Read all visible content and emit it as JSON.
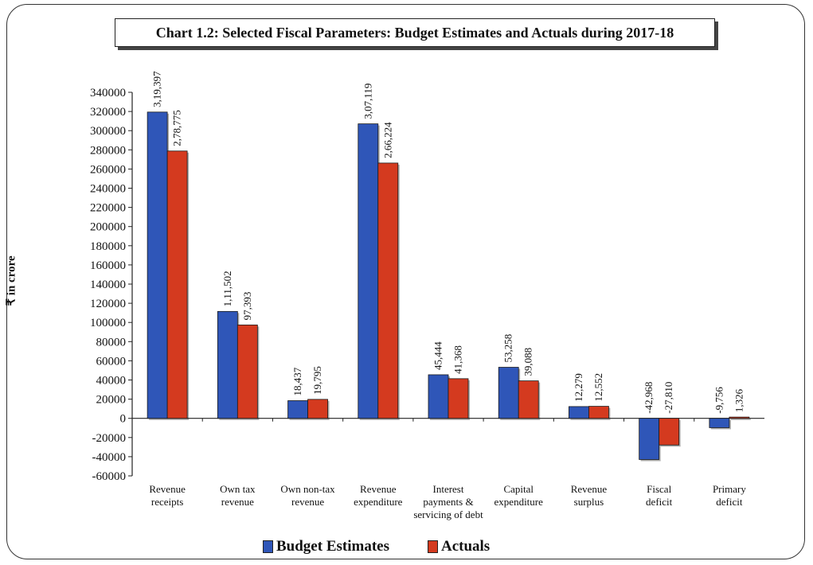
{
  "colors": {
    "budget": "#2f56b8",
    "actuals": "#d43a1f"
  },
  "chart_data": {
    "type": "bar",
    "title": "Chart 1.2: Selected Fiscal Parameters: Budget Estimates and Actuals during 2017-18",
    "ylabel": "₹ in crore",
    "xlabel": "",
    "ylim": [
      -60000,
      340000
    ],
    "yticks": [
      "-60000",
      "-40000",
      "-20000",
      "0",
      "20000",
      "40000",
      "60000",
      "80000",
      "100000",
      "120000",
      "140000",
      "160000",
      "180000",
      "200000",
      "220000",
      "240000",
      "260000",
      "280000",
      "300000",
      "320000",
      "340000"
    ],
    "categories": [
      [
        "Revenue",
        "receipts"
      ],
      [
        "Own tax",
        "revenue"
      ],
      [
        "Own non-tax",
        "revenue"
      ],
      [
        "Revenue",
        "expenditure"
      ],
      [
        "Interest",
        "payments &",
        "servicing of debt"
      ],
      [
        "Capital",
        "expenditure"
      ],
      [
        "Revenue",
        "surplus"
      ],
      [
        "Fiscal",
        "deficit"
      ],
      [
        "Primary",
        "deficit"
      ]
    ],
    "series": [
      {
        "name": "Budget Estimates",
        "values": [
          319397,
          111502,
          18437,
          307119,
          45444,
          53258,
          12279,
          -42968,
          -9756
        ],
        "labels": [
          "3,19,397",
          "1,11,502",
          "18,437",
          "3,07,119",
          "45,444",
          "53,258",
          "12,279",
          "-42,968",
          "-9,756"
        ]
      },
      {
        "name": "Actuals",
        "values": [
          278775,
          97393,
          19795,
          266224,
          41368,
          39088,
          12552,
          -27810,
          1326
        ],
        "labels": [
          "2,78,775",
          "97,393",
          "19,795",
          "2,66,224",
          "41,368",
          "39,088",
          "12,552",
          "-27,810",
          "1,326"
        ]
      }
    ],
    "grid": false,
    "legend_position": "bottom"
  }
}
